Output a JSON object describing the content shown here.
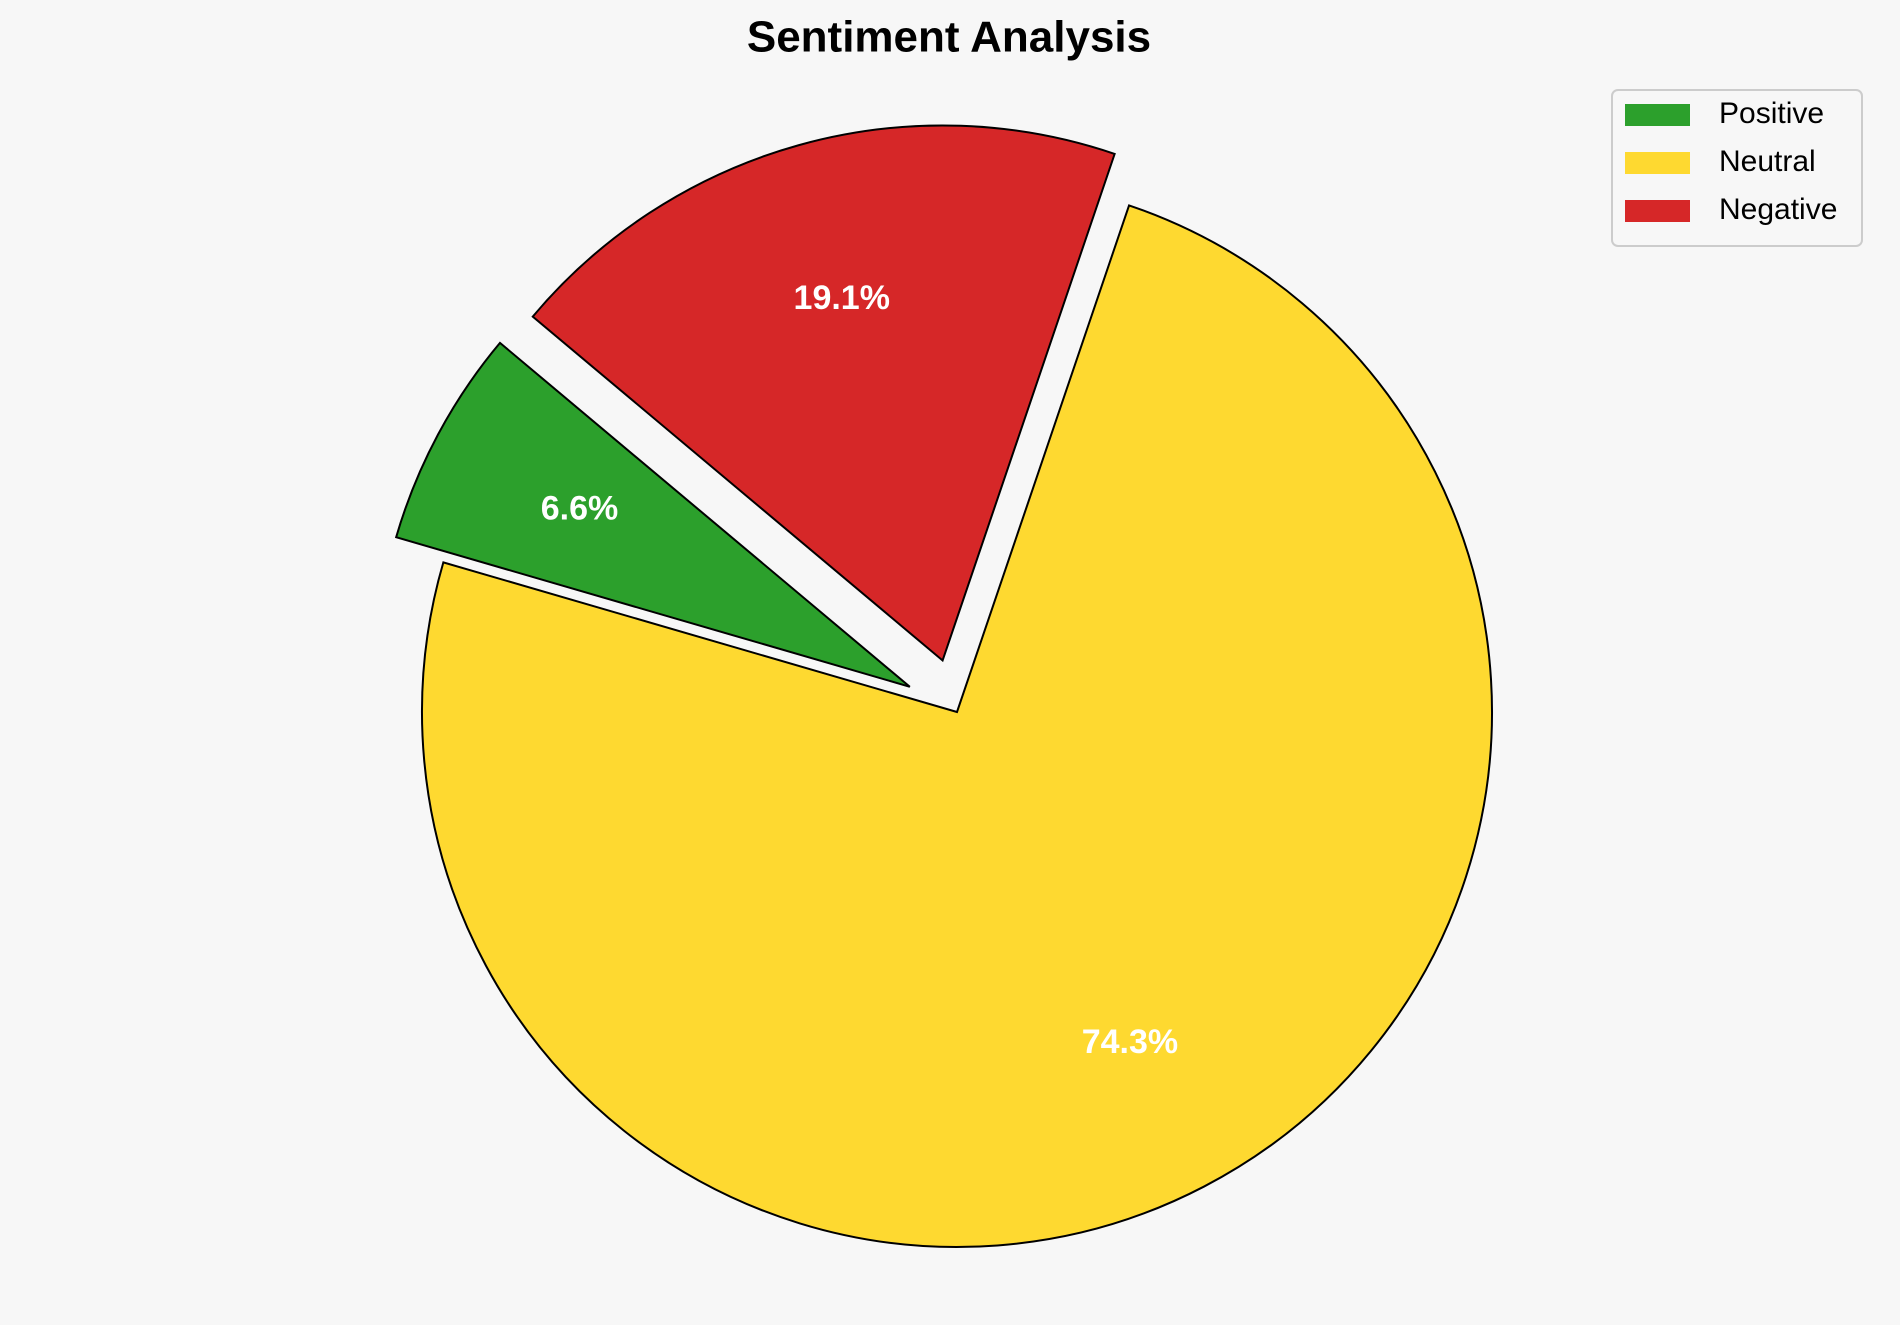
{
  "chart_data": {
    "type": "pie",
    "title": "Sentiment Analysis",
    "categories": [
      "Positive",
      "Neutral",
      "Negative"
    ],
    "values": [
      6.6,
      74.3,
      19.1
    ],
    "value_labels": [
      "6.6%",
      "74.3%",
      "19.1%"
    ],
    "colors": [
      "#2ca02c",
      "#fed930",
      "#d62728"
    ],
    "legend": "upper right"
  }
}
